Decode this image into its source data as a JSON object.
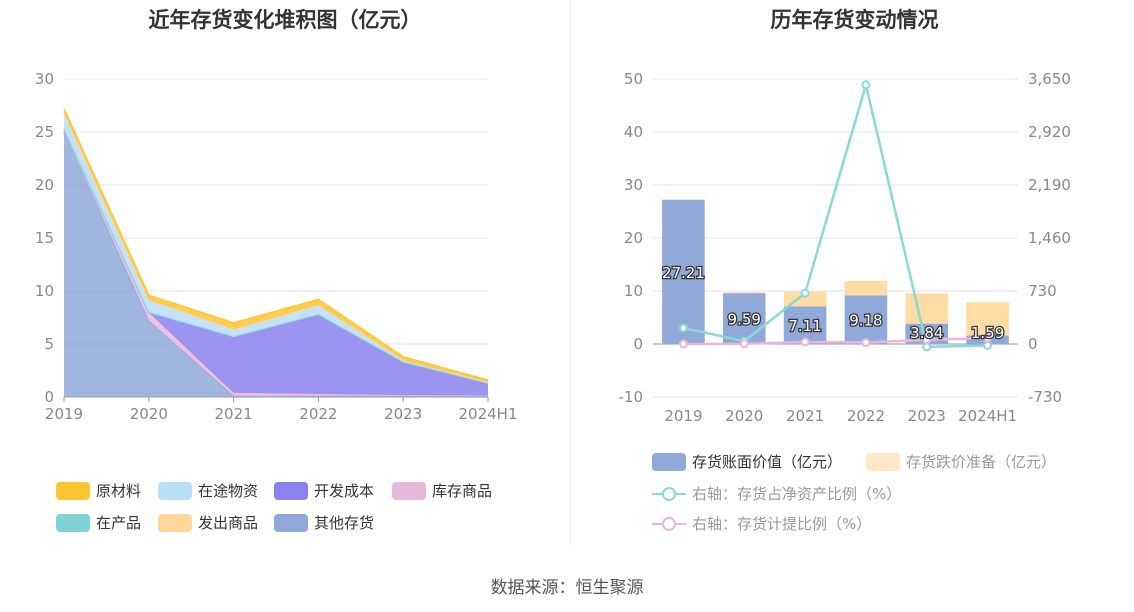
{
  "left_title": "近年存货变化堆积图（亿元）",
  "right_title": "历年存货变动情况",
  "source": "数据来源：恒生聚源",
  "chart_data": [
    {
      "type": "area",
      "stacked": true,
      "title": "近年存货变化堆积图（亿元）",
      "categories": [
        "2019",
        "2020",
        "2021",
        "2022",
        "2023",
        "2024H1"
      ],
      "ylim": [
        0,
        30
      ],
      "yticks": [
        "0",
        "5",
        "10",
        "15",
        "20",
        "25",
        "30"
      ],
      "grid": true,
      "legend_position": "bottom",
      "series": [
        {
          "name": "其他存货",
          "color": "#8fa9d9",
          "values": [
            25.0,
            7.2,
            0.1,
            0.1,
            0.1,
            0.1
          ]
        },
        {
          "name": "库存商品",
          "color": "#e6b8dc",
          "values": [
            0.3,
            0.8,
            0.3,
            0.2,
            0.1,
            0.05
          ]
        },
        {
          "name": "开发成本",
          "color": "#8a82ee",
          "values": [
            0.0,
            0.0,
            5.3,
            7.5,
            3.1,
            1.15
          ]
        },
        {
          "name": "在产品",
          "color": "#7fd3d6",
          "values": [
            0.0,
            0.0,
            0.0,
            0.0,
            0.0,
            0.0
          ]
        },
        {
          "name": "在途物资",
          "color": "#b8dff7",
          "values": [
            1.5,
            1.2,
            0.7,
            0.9,
            0.2,
            0.1
          ]
        },
        {
          "name": "发出商品",
          "color": "#ffd79a",
          "values": [
            0.0,
            0.0,
            0.0,
            0.0,
            0.0,
            0.0
          ]
        },
        {
          "name": "原材料",
          "color": "#ffc532",
          "values": [
            0.4,
            0.4,
            0.6,
            0.5,
            0.3,
            0.2
          ]
        }
      ],
      "legend_order": [
        "原材料",
        "在途物资",
        "开发成本",
        "库存商品",
        "在产品",
        "发出商品",
        "其他存货"
      ]
    },
    {
      "type": "bar",
      "title": "历年存货变动情况",
      "categories": [
        "2019",
        "2020",
        "2021",
        "2022",
        "2023",
        "2024H1"
      ],
      "ylim": [
        -10,
        50
      ],
      "yticks": [
        "-10",
        "0",
        "10",
        "20",
        "30",
        "40",
        "50"
      ],
      "y2lim": [
        -730,
        3650
      ],
      "y2ticks": [
        "-730",
        "0",
        "730",
        "1,460",
        "2,190",
        "2,920",
        "3,650"
      ],
      "grid": true,
      "legend_position": "bottom",
      "series": [
        {
          "name": "存货账面价值（亿元）",
          "kind": "bar",
          "color": "#8fa9d9",
          "values": [
            27.21,
            9.59,
            7.11,
            9.18,
            3.84,
            1.59
          ],
          "labels": [
            "27.21",
            "9.59",
            "7.11",
            "9.18",
            "3.84",
            "1.59"
          ]
        },
        {
          "name": "存货跌价准备（亿元）",
          "kind": "bar-stack",
          "color": "#ffdca4",
          "legend_color": "#ffe9c8",
          "values": [
            0.0,
            0.2,
            2.8,
            2.7,
            5.7,
            6.3
          ]
        },
        {
          "name": "右轴：存货占净资产比例（%）",
          "kind": "line",
          "axis": "right",
          "color": "#8ad8d8",
          "values": [
            220,
            40,
            700,
            3570,
            -40,
            -20
          ]
        },
        {
          "name": "右轴：存货计提比例（%）",
          "kind": "line",
          "axis": "right",
          "color": "#e9b5de",
          "values": [
            0,
            2,
            30,
            20,
            60,
            80
          ]
        }
      ]
    }
  ]
}
